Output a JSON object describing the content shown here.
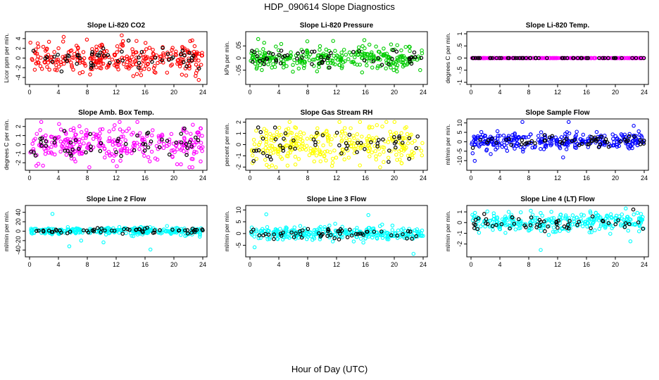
{
  "title": "HDP_090614  Slope Diagnostics",
  "xlabel": "Hour of Day (UTC)",
  "chart_data": [
    {
      "type": "scatter",
      "title": "Slope Li-820 CO2",
      "ylabel": "Licor ppm per min.",
      "xlim": [
        0,
        24
      ],
      "ylim": [
        -5,
        5
      ],
      "xticks": [
        0,
        4,
        8,
        12,
        16,
        20,
        24
      ],
      "yticks": [
        -4,
        -2,
        0,
        2,
        4
      ],
      "color": "#ff0000",
      "spread": 1.6,
      "outliers": 4.6,
      "seed": 11
    },
    {
      "type": "scatter",
      "title": "Slope Li-820 Pressure",
      "ylabel": "kPa per min.",
      "xlim": [
        0,
        24
      ],
      "ylim": [
        -0.1,
        0.1
      ],
      "xticks": [
        0,
        4,
        8,
        12,
        16,
        20,
        24
      ],
      "yticks": [
        -0.05,
        0,
        0.05
      ],
      "color": "#00cc00",
      "spread": 0.022,
      "outliers": 0.09,
      "seed": 23
    },
    {
      "type": "scatter",
      "title": "Slope Li-820 Temp.",
      "ylabel": "degrees C per min.",
      "xlim": [
        0,
        24
      ],
      "ylim": [
        -1,
        1
      ],
      "xticks": [
        0,
        4,
        8,
        12,
        16,
        20,
        24
      ],
      "yticks": [
        -1,
        -0.5,
        0,
        0.5,
        1
      ],
      "color": "#ff00ff",
      "spread": 0.0,
      "outliers": 0.0,
      "seed": 37
    },
    {
      "type": "scatter",
      "title": "Slope Amb. Box Temp.",
      "ylabel": "degrees C per min.",
      "xlim": [
        0,
        24
      ],
      "ylim": [
        -2.6,
        2.6
      ],
      "xticks": [
        0,
        4,
        8,
        12,
        16,
        20,
        24
      ],
      "yticks": [
        -2,
        -1,
        0,
        1,
        2
      ],
      "color": "#ff00ff",
      "spread": 1.0,
      "outliers": 2.5,
      "seed": 41
    },
    {
      "type": "scatter",
      "title": "Slope Gas Stream RH",
      "ylabel": "percent per min.",
      "xlim": [
        0,
        24
      ],
      "ylim": [
        -2.1,
        2.1
      ],
      "xticks": [
        0,
        4,
        8,
        12,
        16,
        20,
        24
      ],
      "yticks": [
        -2,
        -1,
        0,
        1,
        2
      ],
      "color": "#ffff00",
      "spread": 0.9,
      "outliers": 2.0,
      "seed": 53
    },
    {
      "type": "scatter",
      "title": "Slope Sample Flow",
      "ylabel": "ml/min per min.",
      "xlim": [
        0,
        24
      ],
      "ylim": [
        -14,
        11
      ],
      "xticks": [
        0,
        4,
        8,
        12,
        16,
        20,
        24
      ],
      "yticks": [
        -10,
        -5,
        0,
        5,
        10
      ],
      "color": "#0000ff",
      "spread": 2.0,
      "outliers": 12,
      "seed": 67
    },
    {
      "type": "scatter",
      "title": "Slope Line 2 Flow",
      "ylabel": "ml/min per min.",
      "xlim": [
        0,
        24
      ],
      "ylim": [
        -50,
        50
      ],
      "xticks": [
        0,
        4,
        8,
        12,
        16,
        20,
        24
      ],
      "yticks": [
        -40,
        -20,
        0,
        20,
        40
      ],
      "color": "#00ffff",
      "spread": 4,
      "outliers": 45,
      "seed": 71
    },
    {
      "type": "scatter",
      "title": "Slope Line 3 Flow",
      "ylabel": "ml/min per min.",
      "xlim": [
        0,
        24
      ],
      "ylim": [
        -9,
        11
      ],
      "xticks": [
        0,
        4,
        8,
        12,
        16,
        20,
        24
      ],
      "yticks": [
        -5,
        0,
        5,
        10
      ],
      "color": "#00ffff",
      "spread": 1.3,
      "outliers": 10,
      "seed": 83
    },
    {
      "type": "scatter",
      "title": "Slope Line 4 (LT) Flow",
      "ylabel": "ml/min per min.",
      "xlim": [
        0,
        24
      ],
      "ylim": [
        -3,
        1.4
      ],
      "xticks": [
        0,
        4,
        8,
        12,
        16,
        20,
        24
      ],
      "yticks": [
        -2,
        -1,
        0,
        1
      ],
      "color": "#00ffff",
      "spread": 0.45,
      "outliers": 2.6,
      "seed": 97
    }
  ]
}
